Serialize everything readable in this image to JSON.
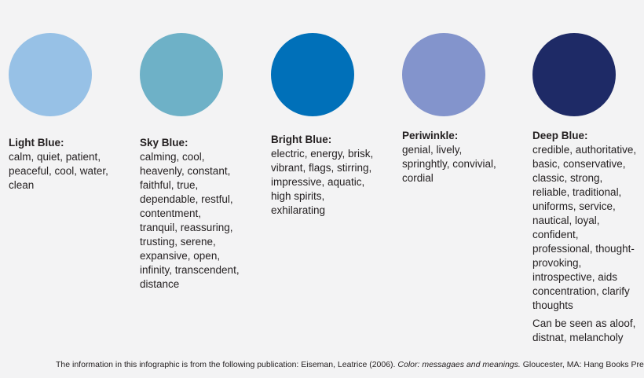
{
  "swatches": [
    {
      "title": "Light Blue:",
      "color": "#97c1e6",
      "description": "calm, quiet, patient, peaceful, cool, water, clean"
    },
    {
      "title": "Sky Blue:",
      "color": "#6eb1c7",
      "description": "calming, cool, heavenly, constant, faithful, true, dependable, restful, contentment, tranquil, reassuring, trusting, serene, expansive, open, infinity, transcendent, distance"
    },
    {
      "title": "Bright Blue:",
      "color": "#0070b9",
      "description": "electric, energy, brisk, vibrant, flags, stirring, impressive, aquatic, high spirits, exhilarating"
    },
    {
      "title": "Periwinkle:",
      "color": "#8394cc",
      "description": "genial, lively, springhtly, convivial, cordial"
    },
    {
      "title": "Deep Blue:",
      "color": "#1e2a66",
      "description": "credible, authoritative, basic, conservative, classic, strong, reliable, traditional, uniforms, service, nautical, loyal, confident, professional, thought-provoking, introspective, aids concentration, clarify thoughts",
      "extra": "Can be seen as aloof, distnat, melancholy"
    }
  ],
  "footer": {
    "prefix": "The information in this infographic is from the following publication: Eiseman, Leatrice (2006). ",
    "title": "Color: messagaes and meanings.",
    "suffix": " Gloucester, MA: Hang Books Press"
  }
}
